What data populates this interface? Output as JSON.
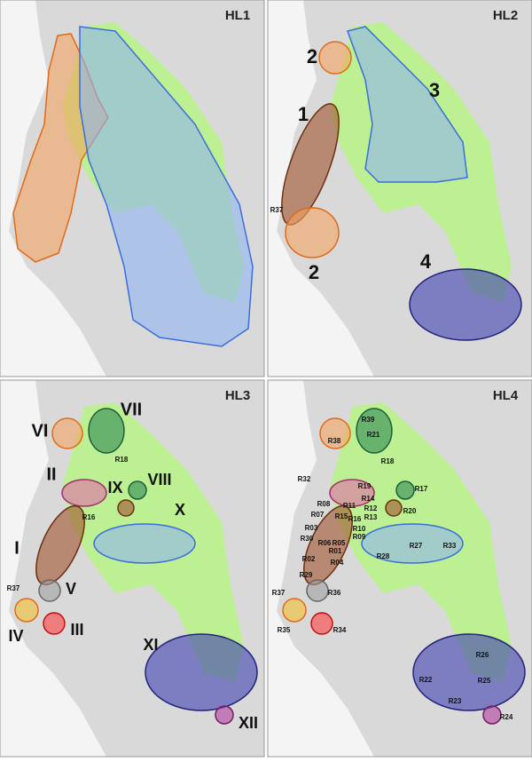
{
  "panels": [
    {
      "title": "HL1",
      "labels": []
    },
    {
      "title": "HL2",
      "labels": [
        "2",
        "3",
        "1",
        "R37",
        "2",
        "4"
      ]
    },
    {
      "title": "HL3",
      "labels": [
        "VII",
        "VI",
        "R18",
        "II",
        "IX",
        "VIII",
        "X",
        "I",
        "R16",
        "R37",
        "V",
        "IV",
        "III",
        "XI",
        "XII"
      ]
    },
    {
      "title": "HL4",
      "labels": [
        "R39",
        "R21",
        "R38",
        "R18",
        "R32",
        "R19",
        "R17",
        "R14",
        "R08",
        "R11",
        "R12",
        "R20",
        "R07",
        "R15",
        "R13",
        "R16",
        "R03",
        "R10",
        "R09",
        "R30",
        "R06",
        "R05",
        "R27",
        "R33",
        "R01",
        "R28",
        "R02",
        "R04",
        "R29",
        "R37",
        "R36",
        "R35",
        "R34",
        "R26",
        "R22",
        "R25",
        "R23",
        "R24"
      ]
    }
  ]
}
